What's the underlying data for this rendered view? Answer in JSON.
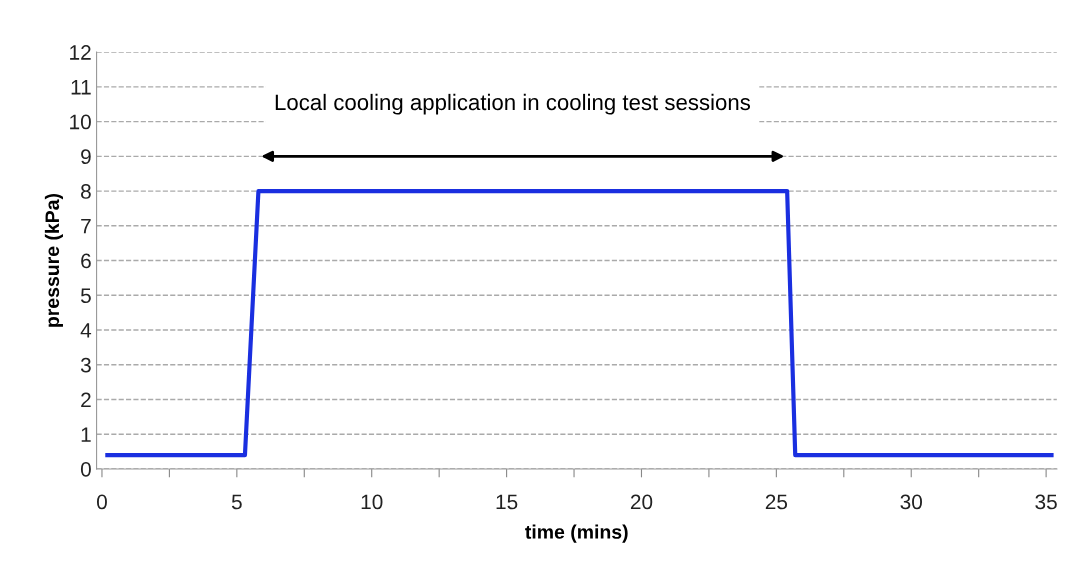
{
  "chart_data": {
    "type": "line",
    "xlabel": "time (mins)",
    "ylabel": "pressure (kPa)",
    "x": [
      0.2,
      5.3,
      5.8,
      25.4,
      25.7,
      35.2
    ],
    "series": [
      {
        "color": "#1a2fe0",
        "values": [
          0.4,
          0.4,
          8,
          8,
          0.4,
          0.4
        ]
      }
    ],
    "xlim": [
      -0.2,
      35.4
    ],
    "xticks": [
      0,
      {
        "value": 2.5,
        "label": null
      },
      5,
      {
        "value": 7.5,
        "label": null
      },
      10,
      {
        "value": 12.5,
        "label": null
      },
      15,
      {
        "value": 17.5,
        "label": null
      },
      20,
      {
        "value": 22.5,
        "label": null
      },
      25,
      {
        "value": 27.5,
        "label": null
      },
      30,
      {
        "value": 32.5,
        "label": null
      },
      35
    ],
    "ylim": [
      0,
      12
    ],
    "yticks": [
      0,
      1,
      2,
      3,
      4,
      5,
      6,
      7,
      8,
      9,
      10,
      11,
      12
    ],
    "grid": "y",
    "marker": "none",
    "line_style": "solid",
    "annotations": [
      "Local cooling application in cooling test sessions"
    ]
  }
}
